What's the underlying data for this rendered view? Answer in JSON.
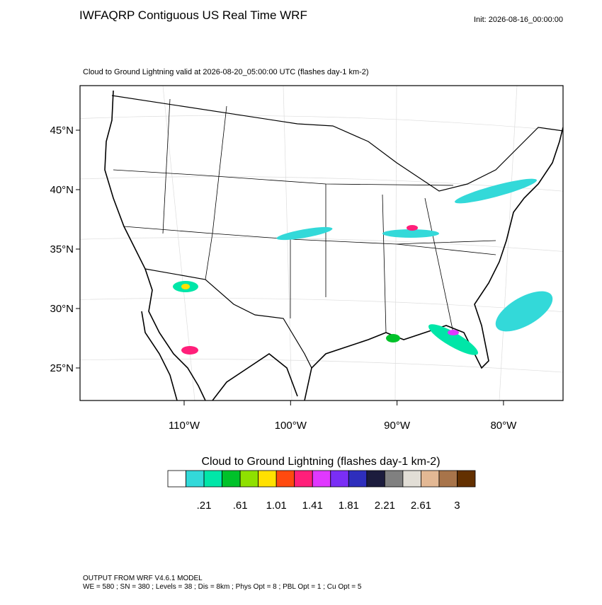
{
  "header": {
    "title": "IWFAQRP Contiguous US Real Time WRF",
    "init": "Init: 2026-08-16_00:00:00"
  },
  "map": {
    "subtitle": "Cloud to Ground Lightning valid at 2026-08-20_05:00:00 UTC   (flashes day-1 km-2)",
    "lat_labels": [
      "45°N",
      "40°N",
      "35°N",
      "30°N",
      "25°N"
    ],
    "lon_labels": [
      "110°W",
      "100°W",
      "90°W",
      "80°W"
    ]
  },
  "colorbar": {
    "title": "Cloud to Ground Lightning  (flashes day-1 km-2)",
    "colors": [
      "#ffffff",
      "#33d9d9",
      "#00e6a8",
      "#00c22a",
      "#8fe000",
      "#ffe100",
      "#ff4a0f",
      "#ff1f7a",
      "#e038ff",
      "#7a2ef5",
      "#2e2ebd",
      "#1c1c3d",
      "#808080",
      "#e2ded6",
      "#e3b894",
      "#a8744a",
      "#633000"
    ],
    "tick_labels": [
      ".21",
      ".61",
      "1.01",
      "1.41",
      "1.81",
      "2.21",
      "2.61",
      "3"
    ]
  },
  "footer": {
    "lines": [
      "OUTPUT FROM WRF V4.6.1 MODEL",
      "WE = 580 ; SN = 380 ; Levels = 38 ; Dis = 8km ; Phys Opt = 8 ; PBL Opt = 1 ; Cu Opt = 5"
    ]
  }
}
